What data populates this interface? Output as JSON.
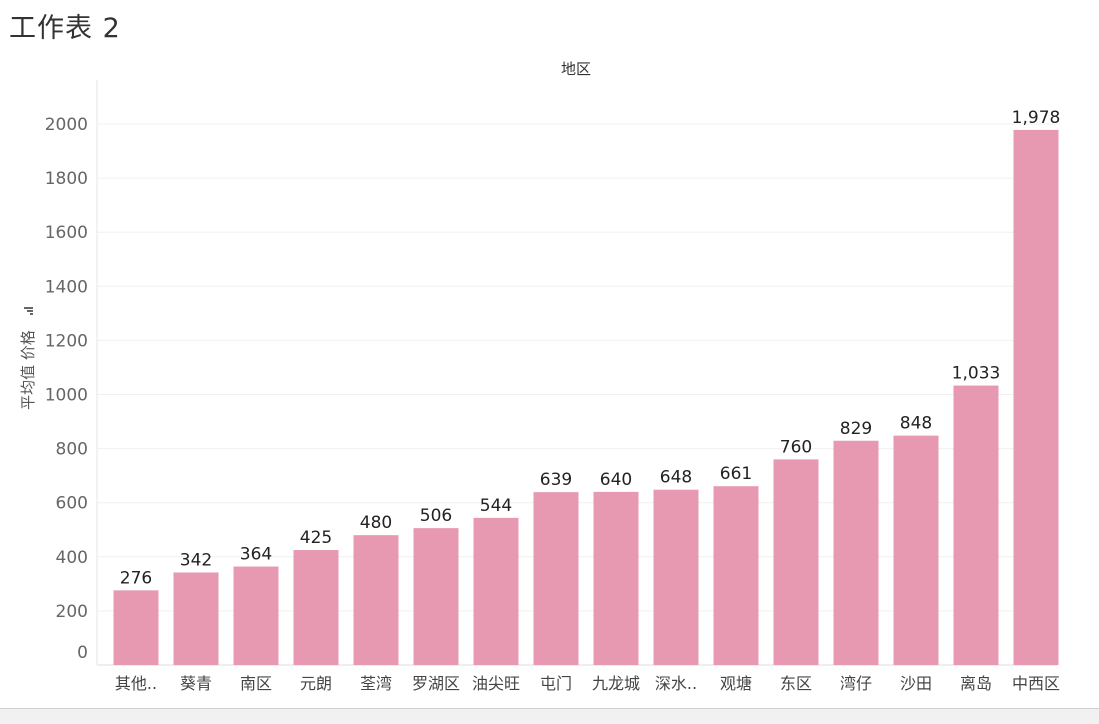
{
  "sheet": {
    "title": "工作表 2"
  },
  "chart_data": {
    "type": "bar",
    "title": "",
    "column_header": "地区",
    "ylabel": "平均值 价格",
    "xlabel": "",
    "ylim": [
      0,
      2100
    ],
    "yticks": [
      0,
      200,
      400,
      600,
      800,
      1000,
      1200,
      1400,
      1600,
      1800,
      2000
    ],
    "categories": [
      "其他..",
      "葵青",
      "南区",
      "元朗",
      "荃湾",
      "罗湖区",
      "油尖旺",
      "屯门",
      "九龙城",
      "深水..",
      "观塘",
      "东区",
      "湾仔",
      "沙田",
      "离岛",
      "中西区"
    ],
    "values": [
      276,
      342,
      364,
      425,
      480,
      506,
      544,
      639,
      640,
      648,
      661,
      760,
      829,
      848,
      1033,
      1978
    ],
    "value_labels": [
      "276",
      "342",
      "364",
      "425",
      "480",
      "506",
      "544",
      "639",
      "640",
      "648",
      "661",
      "760",
      "829",
      "848",
      "1,033",
      "1,978"
    ],
    "bar_color": "#e799b2",
    "grid": true
  }
}
